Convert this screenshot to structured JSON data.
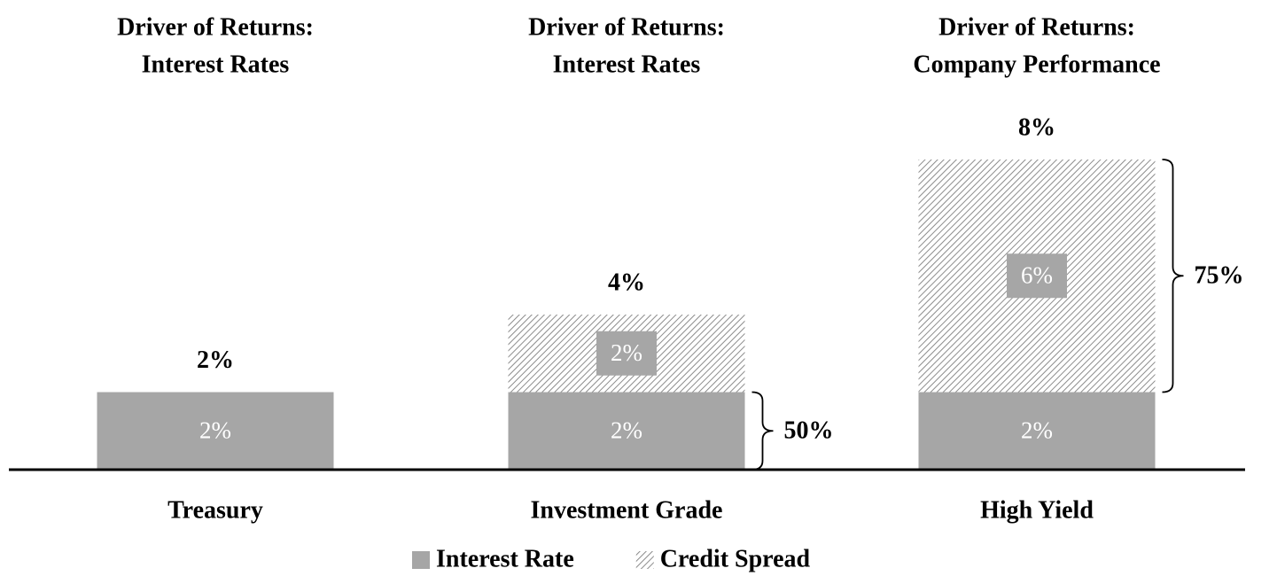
{
  "chart_data": {
    "type": "stacked_bar",
    "headers": [
      [
        "Driver of Returns:",
        "Interest Rates"
      ],
      [
        "Driver of Returns:",
        "Interest Rates"
      ],
      [
        "Driver of Returns:",
        "Company Performance"
      ]
    ],
    "categories": [
      "Treasury",
      "Investment Grade",
      "High Yield"
    ],
    "series": [
      {
        "name": "Interest Rate",
        "color": "#a6a6a6",
        "pattern": "solid",
        "values": [
          2,
          2,
          2
        ],
        "value_labels": [
          "2%",
          "2%",
          "2%"
        ]
      },
      {
        "name": "Credit Spread",
        "color": "#a6a6a6",
        "pattern": "hatch",
        "values": [
          null,
          2,
          6
        ],
        "value_labels": [
          null,
          "2%",
          "6%"
        ]
      }
    ],
    "totals": [
      2,
      4,
      8
    ],
    "total_labels": [
      "2%",
      "4%",
      "8%"
    ],
    "annotations": [
      {
        "category": "Investment Grade",
        "series": "Interest Rate",
        "value": 50,
        "label": "50%"
      },
      {
        "category": "High Yield",
        "series": "Credit Spread",
        "value": 75,
        "label": "75%"
      }
    ],
    "ylim": [
      0,
      8
    ],
    "legend": "bottom"
  }
}
